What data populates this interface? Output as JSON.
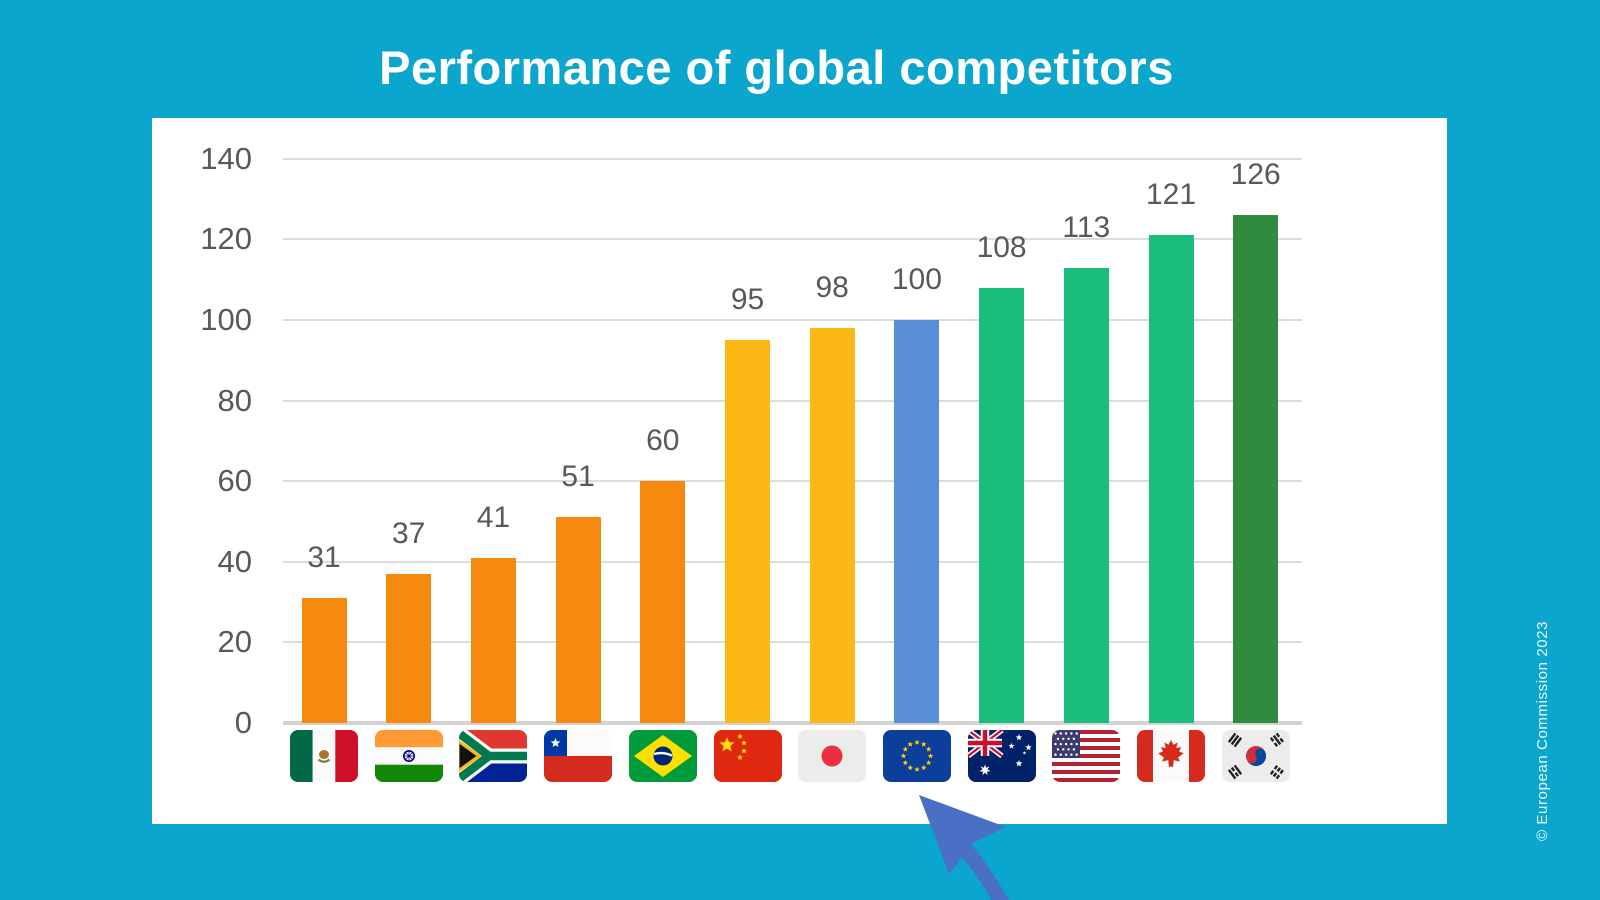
{
  "title": "Performance of global competitors",
  "watermark": "© European Commission  2023",
  "colors": {
    "background": "#0aa6ce",
    "panel": "#ffffff",
    "title_text": "#ffffff",
    "axis_label": "#595959",
    "gridline": "#dcdcdc",
    "baseline": "#d2d2d2",
    "arrow": "#4a70c6",
    "orange": "#f6890f",
    "gold": "#fcb815",
    "eu_blue": "#5b8ed9",
    "emerald": "#19be7d",
    "dark_green": "#2f8b3e"
  },
  "chart_data": {
    "type": "bar",
    "title": "Performance of global competitors",
    "categories": [
      "Mexico",
      "India",
      "South Africa",
      "Chile",
      "Brazil",
      "China",
      "Japan",
      "European Union",
      "Australia",
      "United States",
      "Canada",
      "South Korea"
    ],
    "flag_codes": [
      "mx",
      "in",
      "za",
      "cl",
      "br",
      "cn",
      "jp",
      "eu",
      "au",
      "us",
      "ca",
      "kr"
    ],
    "values": [
      31,
      37,
      41,
      51,
      60,
      95,
      98,
      100,
      108,
      113,
      121,
      126
    ],
    "bar_colors": [
      "#f6890f",
      "#f6890f",
      "#f6890f",
      "#f6890f",
      "#f6890f",
      "#fcb815",
      "#fcb815",
      "#5b8ed9",
      "#19be7d",
      "#19be7d",
      "#19be7d",
      "#2f8b3e"
    ],
    "xlabel": "",
    "ylabel": "",
    "ylim": [
      0,
      140
    ],
    "yticks": [
      0,
      20,
      40,
      60,
      80,
      100,
      120,
      140
    ],
    "grid": true,
    "legend": false,
    "x_axis_labels": "country flags",
    "highlight_category": "European Union",
    "annotation": "Hand-drawn arrow pointing to the European Union flag"
  }
}
